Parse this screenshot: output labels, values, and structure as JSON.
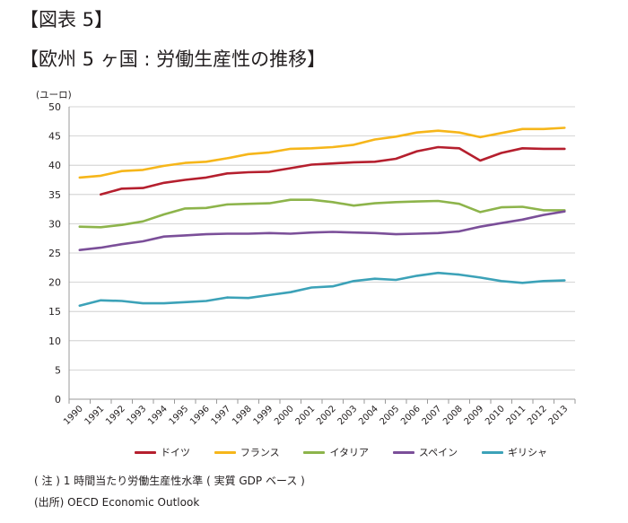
{
  "figure_label": "【図表 5】",
  "title": "【欧州 5 ヶ国 : 労働生産性の推移】",
  "chart_data": {
    "type": "line",
    "title": "【欧州 5 ヶ国 : 労働生産性の推移】",
    "ylabel": "(ユーロ)",
    "xlabel": "",
    "ylim": [
      0,
      50
    ],
    "yticks": [
      "0",
      "5",
      "10",
      "15",
      "20",
      "25",
      "30",
      "35",
      "40",
      "45",
      "50"
    ],
    "categories": [
      "1990",
      "1991",
      "1992",
      "1993",
      "1994",
      "1995",
      "1996",
      "1997",
      "1998",
      "1999",
      "2000",
      "2001",
      "2002",
      "2003",
      "2004",
      "2005",
      "2006",
      "2007",
      "2008",
      "2009",
      "2010",
      "2011",
      "2012",
      "2013"
    ],
    "grid": true,
    "legend": "bottom",
    "series": [
      {
        "name": "ドイツ",
        "color": "#b51f2e",
        "values": [
          null,
          35.0,
          36.0,
          36.1,
          37.0,
          37.5,
          37.9,
          38.6,
          38.8,
          38.9,
          39.5,
          40.1,
          40.3,
          40.5,
          40.6,
          41.1,
          42.4,
          43.1,
          42.9,
          40.8,
          42.1,
          42.9,
          42.8,
          42.8
        ]
      },
      {
        "name": "フランス",
        "color": "#f6b61a",
        "values": [
          37.9,
          38.2,
          39.0,
          39.2,
          39.9,
          40.4,
          40.6,
          41.2,
          41.9,
          42.2,
          42.8,
          42.9,
          43.1,
          43.5,
          44.4,
          44.9,
          45.6,
          45.9,
          45.6,
          44.8,
          45.5,
          46.2,
          46.2,
          46.4
        ]
      },
      {
        "name": "イタリア",
        "color": "#8db44b",
        "values": [
          29.5,
          29.4,
          29.8,
          30.4,
          31.6,
          32.6,
          32.7,
          33.3,
          33.4,
          33.5,
          34.1,
          34.1,
          33.7,
          33.1,
          33.5,
          33.7,
          33.8,
          33.9,
          33.4,
          32.0,
          32.8,
          32.9,
          32.3,
          32.3
        ]
      },
      {
        "name": "スペイン",
        "color": "#7b4f99",
        "values": [
          25.5,
          25.9,
          26.5,
          27.0,
          27.8,
          28.0,
          28.2,
          28.3,
          28.3,
          28.4,
          28.3,
          28.5,
          28.6,
          28.5,
          28.4,
          28.2,
          28.3,
          28.4,
          28.7,
          29.5,
          30.1,
          30.7,
          31.5,
          32.1
        ]
      },
      {
        "name": "ギリシャ",
        "color": "#3ca2b8",
        "values": [
          16.0,
          16.9,
          16.8,
          16.4,
          16.4,
          16.6,
          16.8,
          17.4,
          17.3,
          17.8,
          18.3,
          19.1,
          19.3,
          20.2,
          20.6,
          20.4,
          21.1,
          21.6,
          21.3,
          20.8,
          20.2,
          19.9,
          20.2,
          20.3
        ]
      }
    ]
  },
  "note": "( 注 ) 1 時間当たり労働生産性水準 ( 実質 GDP ベース )",
  "source": "(出所)  OECD    Economic Outlook"
}
